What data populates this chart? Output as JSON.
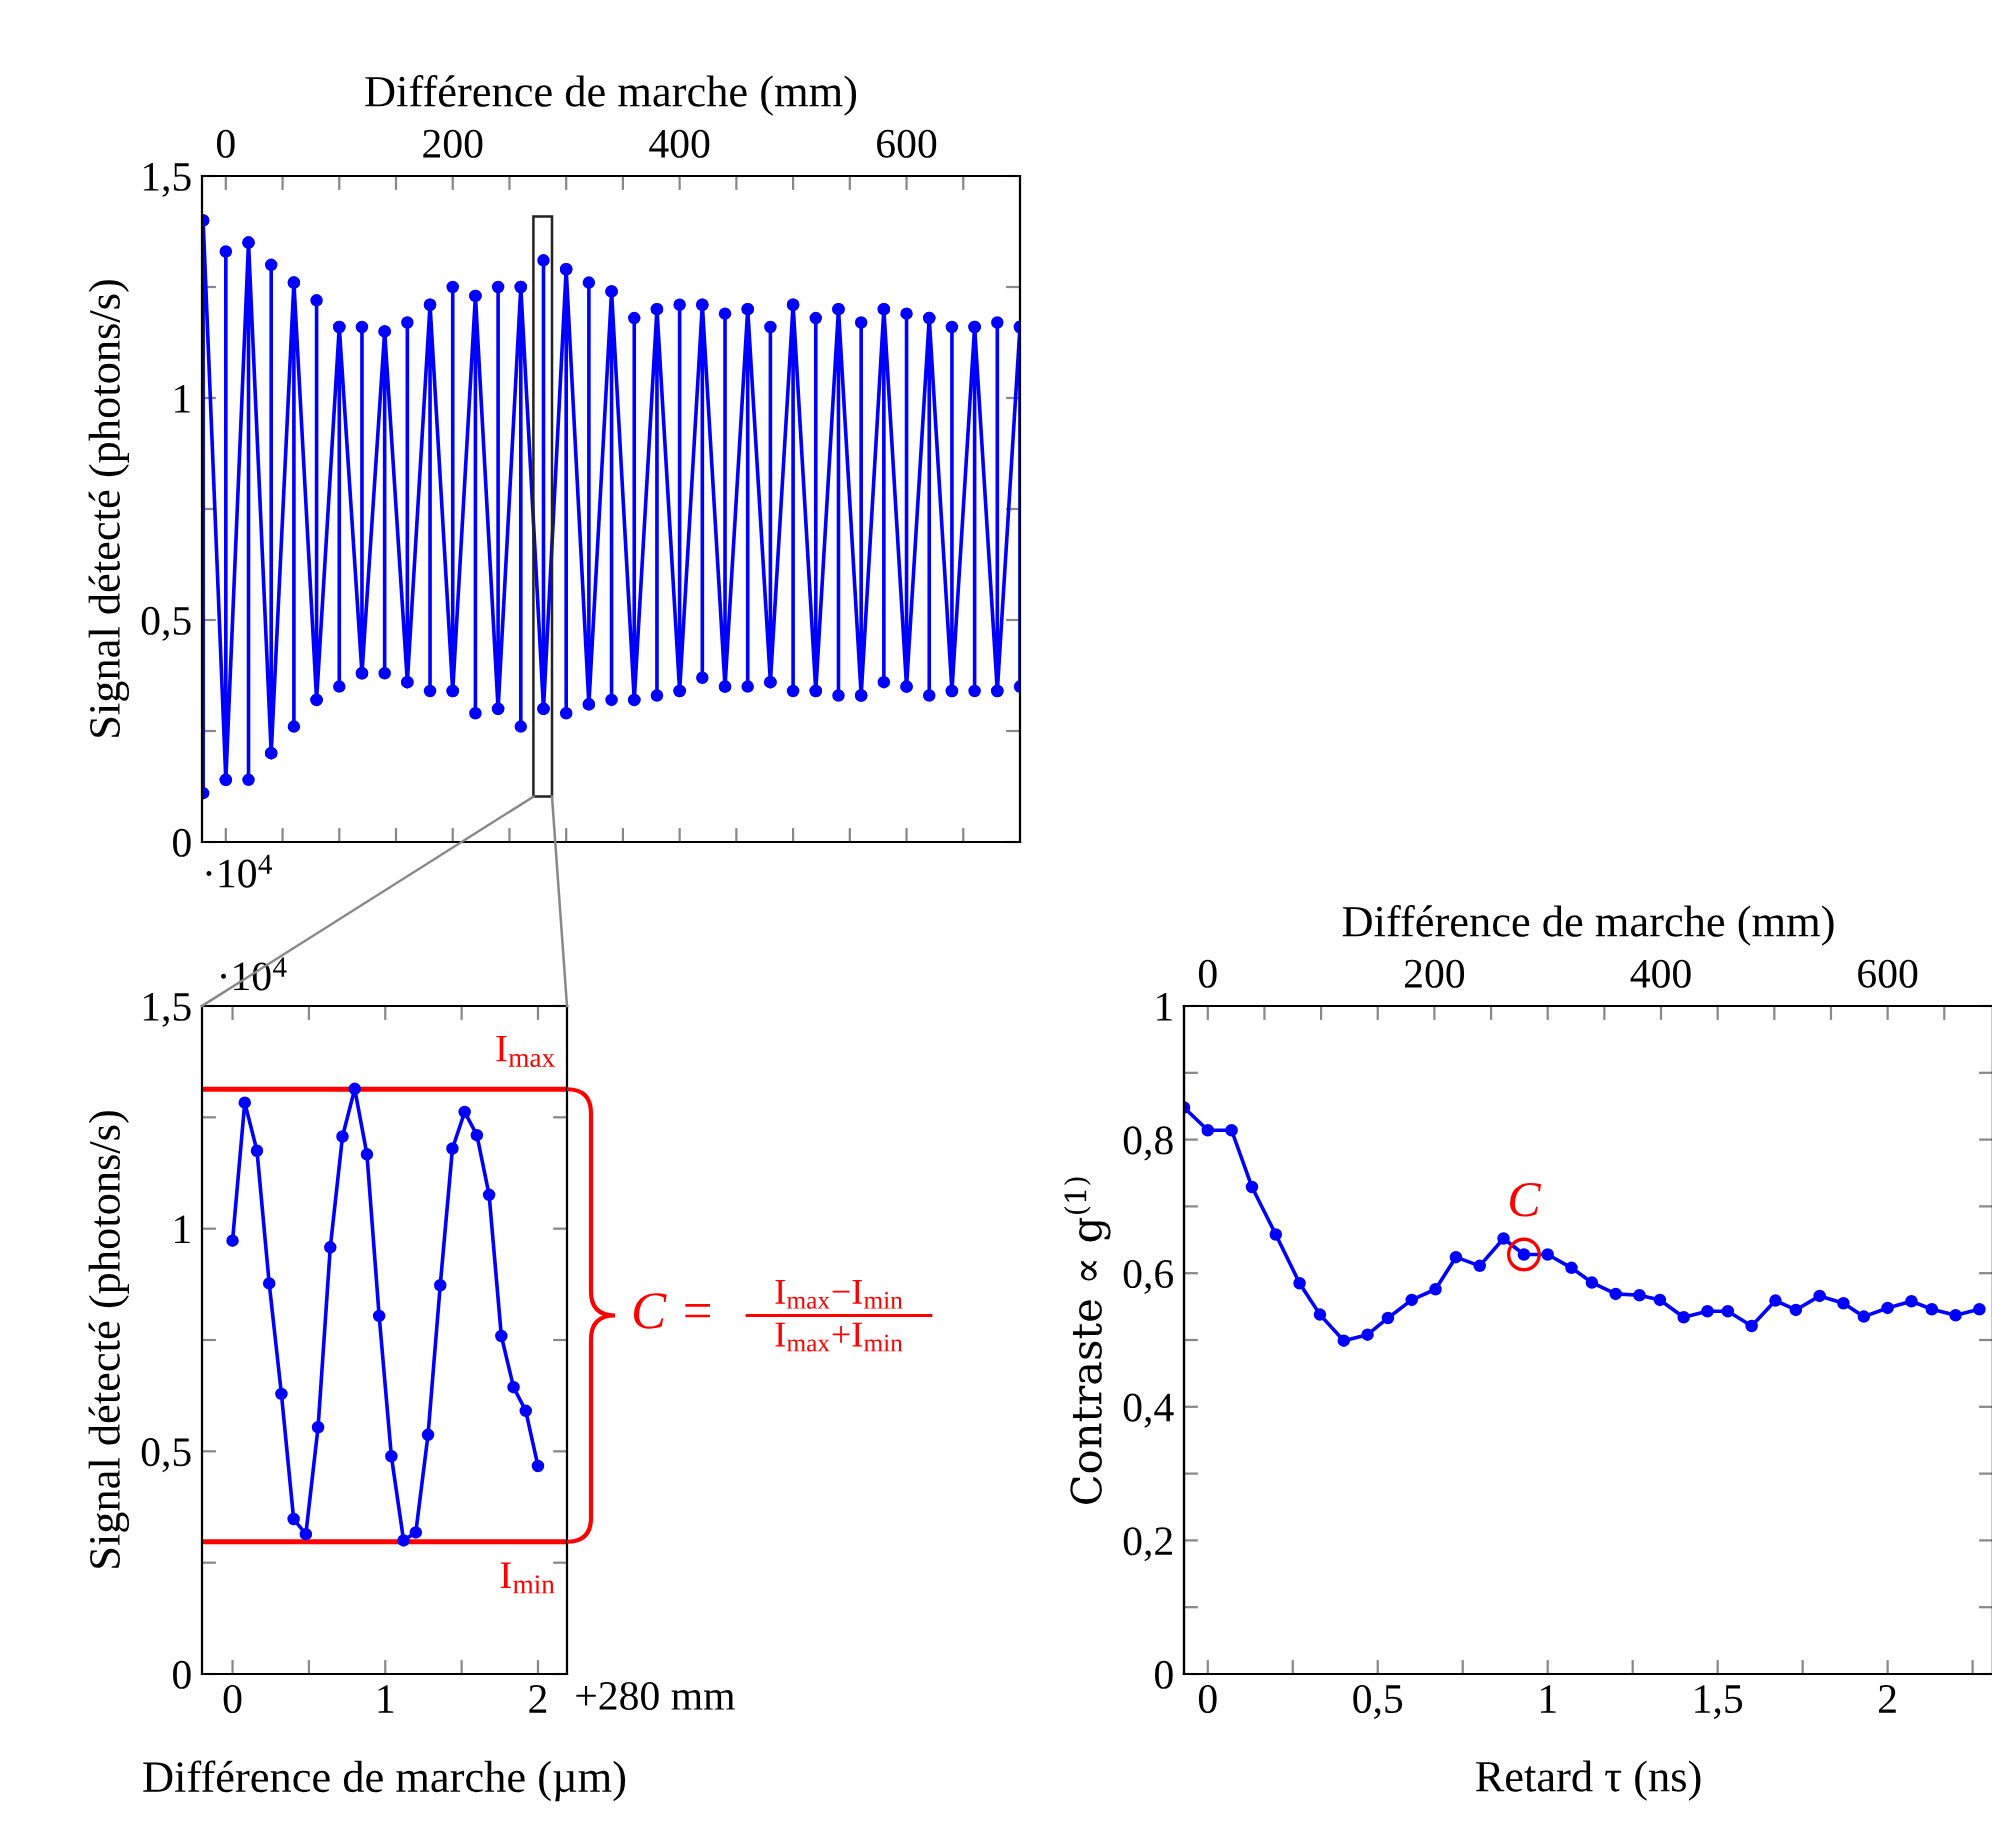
{
  "chart_data": [
    {
      "type": "line",
      "xlabel": "Différence de marche (mm)",
      "ylabel": "Signal détecté (photons/s)",
      "xlim": [
        -21,
        700
      ],
      "xticks": [
        0,
        {
          "value": 50,
          "label": null
        },
        {
          "value": 100,
          "label": null
        },
        {
          "value": 150,
          "label": null
        },
        200,
        {
          "value": 250,
          "label": null
        },
        {
          "value": 300,
          "label": null
        },
        {
          "value": 350,
          "label": null
        },
        400,
        {
          "value": 450,
          "label": null
        },
        {
          "value": 500,
          "label": null
        },
        {
          "value": 550,
          "label": null
        },
        600,
        {
          "value": 650,
          "label": null
        }
      ],
      "ylim": [
        0,
        1.5
      ],
      "yticks": [
        0,
        {
          "value": 0.25,
          "label": null
        },
        {
          "value": 0.5,
          "label": "0,5"
        },
        {
          "value": 0.75,
          "label": null
        },
        1,
        {
          "value": 1.25,
          "label": null
        },
        {
          "value": 1.5,
          "label": "1,5"
        }
      ],
      "marker": "circle",
      "line_style": "solid",
      "grid": false,
      "legend": false,
      "annotations": [
        "·10$^{4}$"
      ],
      "series": [
        {
          "color": "#0000ff",
          "x": [
            -20,
            -20,
            -20,
            0,
            0,
            0,
            20,
            20,
            20,
            40,
            40,
            40,
            60,
            60,
            60,
            80,
            80,
            80,
            100,
            100,
            100,
            120,
            120,
            120,
            140,
            140,
            140,
            160,
            160,
            160,
            180,
            180,
            180,
            200,
            200,
            200,
            220,
            220,
            220,
            240,
            240,
            240,
            260,
            260,
            260,
            280,
            280,
            280,
            300,
            300,
            300,
            320,
            320,
            320,
            340,
            340,
            340,
            360,
            360,
            360,
            380,
            380,
            380,
            400,
            400,
            400,
            420,
            420,
            420,
            440,
            440,
            440,
            460,
            460,
            460,
            480,
            480,
            480,
            500,
            500,
            500,
            520,
            520,
            520,
            540,
            540,
            540,
            560,
            560,
            560,
            580,
            580,
            580,
            600,
            600,
            600,
            620,
            620,
            620,
            640,
            640,
            640,
            660,
            660,
            660,
            680,
            680,
            680,
            700,
            700,
            700
          ],
          "values": [
            1.4,
            0.11,
            1.4,
            0.14,
            1.33,
            0.14,
            1.35,
            0.14,
            1.35,
            0.2,
            1.3,
            0.2,
            1.26,
            0.26,
            1.26,
            0.32,
            1.22,
            0.32,
            1.16,
            0.35,
            1.16,
            0.38,
            1.16,
            0.38,
            1.15,
            0.38,
            1.15,
            0.36,
            1.17,
            0.36,
            1.21,
            0.34,
            1.21,
            0.34,
            1.25,
            0.34,
            1.23,
            0.29,
            1.23,
            0.3,
            1.25,
            0.3,
            1.25,
            0.26,
            1.25,
            0.3,
            1.31,
            0.3,
            1.29,
            0.29,
            1.29,
            0.31,
            1.26,
            0.31,
            1.24,
            0.32,
            1.24,
            0.32,
            1.18,
            0.32,
            1.2,
            0.33,
            1.2,
            0.34,
            1.21,
            0.34,
            1.21,
            0.37,
            1.21,
            0.35,
            1.19,
            0.35,
            1.2,
            0.35,
            1.2,
            0.36,
            1.16,
            0.36,
            1.21,
            0.34,
            1.21,
            0.34,
            1.18,
            0.34,
            1.2,
            0.33,
            1.2,
            0.33,
            1.17,
            0.33,
            1.2,
            0.36,
            1.2,
            0.35,
            1.19,
            0.35,
            1.18,
            0.33,
            1.18,
            0.34,
            1.16,
            0.34,
            1.16,
            0.34,
            1.16,
            0.34,
            1.17,
            0.34,
            1.16,
            0.35,
            1.16
          ]
        }
      ]
    },
    {
      "type": "line",
      "xlabel": "Différence de marche (µm)",
      "ylabel": "Signal détecté (photons/s)",
      "xlim": [
        -0.2,
        2.19
      ],
      "xticks": [
        0,
        {
          "value": 0.5,
          "label": null
        },
        1,
        {
          "value": 1.5,
          "label": null
        },
        2
      ],
      "ylim": [
        0,
        1.5
      ],
      "yticks": [
        0,
        {
          "value": 0.25,
          "label": null
        },
        {
          "value": 0.5,
          "label": "0,5"
        },
        {
          "value": 0.75,
          "label": null
        },
        1,
        {
          "value": 1.25,
          "label": null
        },
        {
          "value": 1.5,
          "label": "1,5"
        }
      ],
      "marker": "circle",
      "line_style": "solid",
      "grid": false,
      "legend": false,
      "ref_lines": [
        {
          "axis": "y",
          "value": 1.313,
          "label": "I$_{max}$",
          "color": "#ff0000",
          "line_style": "solid"
        },
        {
          "axis": "y",
          "value": 0.297,
          "label": "I$_{min}$",
          "color": "#ff0000",
          "line_style": "solid"
        }
      ],
      "annotations": [
        "·10$^{4}$",
        "+280 mm",
        "C =",
        "I$_{max}$−I$_{min}$",
        "I$_{max}$+I$_{min}$"
      ],
      "series": [
        {
          "color": "#0000ff",
          "x": [
            0,
            0.08,
            0.16,
            0.24,
            0.32,
            0.4,
            0.48,
            0.56,
            0.64,
            0.72,
            0.8,
            0.88,
            0.96,
            1.04,
            1.12,
            1.2,
            1.28,
            1.36,
            1.44,
            1.52,
            1.6,
            1.68,
            1.76,
            1.84,
            1.92,
            2.0
          ],
          "values": [
            0.973,
            1.283,
            1.175,
            0.877,
            0.629,
            0.348,
            0.314,
            0.554,
            0.958,
            1.207,
            1.314,
            1.167,
            0.804,
            0.489,
            0.3,
            0.318,
            0.537,
            0.873,
            1.18,
            1.262,
            1.21,
            1.076,
            0.759,
            0.644,
            0.591,
            0.467
          ]
        }
      ]
    },
    {
      "type": "line",
      "xlabel": "Retard τ (ns)",
      "ylabel": "Contraste ∝ g$^{(1)}$",
      "x2label": "Différence de marche (mm)",
      "xlim": [
        -0.07,
        2.31
      ],
      "xticks": [
        0,
        {
          "value": 0.25,
          "label": null
        },
        {
          "value": 0.5,
          "label": "0,5"
        },
        {
          "value": 0.75,
          "label": null
        },
        1,
        {
          "value": 1.25,
          "label": null
        },
        {
          "value": 1.5,
          "label": "1,5"
        },
        {
          "value": 1.75,
          "label": null
        },
        2,
        {
          "value": 2.25,
          "label": null
        }
      ],
      "x2lim": [
        -21,
        693
      ],
      "x2ticks": [
        0,
        {
          "value": 50,
          "label": null
        },
        {
          "value": 100,
          "label": null
        },
        {
          "value": 150,
          "label": null
        },
        200,
        {
          "value": 250,
          "label": null
        },
        {
          "value": 300,
          "label": null
        },
        {
          "value": 350,
          "label": null
        },
        400,
        {
          "value": 450,
          "label": null
        },
        {
          "value": 500,
          "label": null
        },
        {
          "value": 550,
          "label": null
        },
        600,
        {
          "value": 650,
          "label": null
        }
      ],
      "ylim": [
        0,
        1
      ],
      "yticks": [
        0,
        {
          "value": 0.1,
          "label": null
        },
        {
          "value": 0.2,
          "label": "0,2"
        },
        {
          "value": 0.3,
          "label": null
        },
        {
          "value": 0.4,
          "label": "0,4"
        },
        {
          "value": 0.5,
          "label": null
        },
        {
          "value": 0.6,
          "label": "0,6"
        },
        {
          "value": 0.7,
          "label": null
        },
        {
          "value": 0.8,
          "label": "0,8"
        },
        {
          "value": 0.9,
          "label": null
        },
        1
      ],
      "marker": "circle",
      "line_style": "solid",
      "grid": false,
      "legend": false,
      "annotations": [
        {
          "text": "C",
          "x": 0.93,
          "y": 0.628
        }
      ],
      "series": [
        {
          "color": "#0000ff",
          "x": [
            -0.07,
            0,
            0.07,
            0.13,
            0.2,
            0.27,
            0.33,
            0.4,
            0.47,
            0.53,
            0.6,
            0.67,
            0.73,
            0.8,
            0.87,
            0.93,
            1.0,
            1.07,
            1.13,
            1.2,
            1.27,
            1.33,
            1.4,
            1.47,
            1.53,
            1.6,
            1.67,
            1.73,
            1.8,
            1.87,
            1.93,
            2.0,
            2.07,
            2.13,
            2.2,
            2.27
          ],
          "values": [
            0.848,
            0.814,
            0.814,
            0.729,
            0.658,
            0.585,
            0.538,
            0.499,
            0.508,
            0.533,
            0.56,
            0.576,
            0.624,
            0.611,
            0.652,
            0.628,
            0.628,
            0.608,
            0.586,
            0.569,
            0.567,
            0.56,
            0.534,
            0.543,
            0.543,
            0.521,
            0.559,
            0.545,
            0.566,
            0.555,
            0.535,
            0.548,
            0.558,
            0.546,
            0.537,
            0.546
          ]
        }
      ]
    }
  ]
}
